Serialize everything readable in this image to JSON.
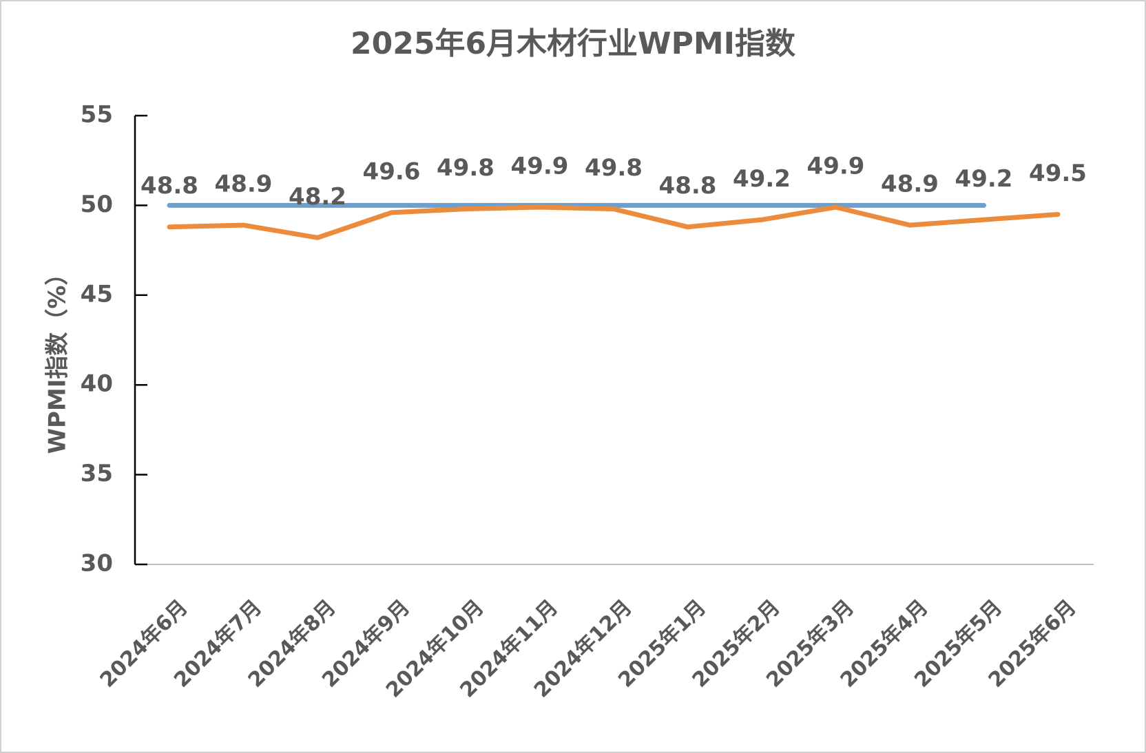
{
  "chart_data": {
    "type": "line",
    "title": "2025年6月木材行业WPMI指数",
    "y_label": "WPMI指数（%）",
    "categories": [
      "2024年6月",
      "2024年7月",
      "2024年8月",
      "2024年9月",
      "2024年10月",
      "2024年11月",
      "2024年12月",
      "2025年1月",
      "2025年2月",
      "2025年3月",
      "2025年4月",
      "2025年5月",
      "2025年6月"
    ],
    "series": [
      {
        "color": "#ed8b3d",
        "values": [
          48.8,
          48.9,
          48.2,
          49.6,
          49.8,
          49.9,
          49.8,
          48.8,
          49.2,
          49.9,
          48.9,
          49.2,
          49.5
        ],
        "data_labels": true
      },
      {
        "color": "#6a9fd1",
        "values": [
          50,
          50,
          50,
          50,
          50,
          50,
          50,
          50,
          50,
          50,
          50,
          50,
          null
        ]
      }
    ],
    "ylim": [
      30,
      55
    ],
    "yticks": [
      30,
      35,
      40,
      45,
      50,
      55
    ]
  }
}
